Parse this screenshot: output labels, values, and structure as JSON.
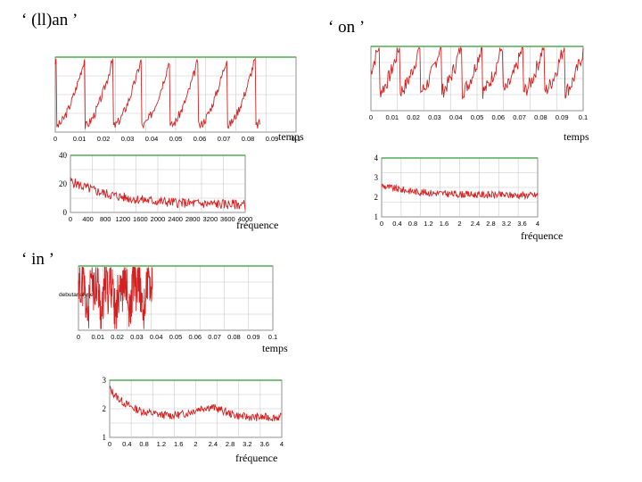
{
  "titles": {
    "llan": "‘ (ll)an ’",
    "on": "‘ on ’",
    "in": "‘ in ’"
  },
  "colors": {
    "signal": "#d42020",
    "grid": "#c8c8c8",
    "frame": "#909090",
    "topline": "#2e9e2e"
  },
  "chart_data": [
    {
      "id": "llan_time",
      "type": "line",
      "xlabel": "temps",
      "ylabel": "",
      "xlim": [
        0,
        0.1
      ],
      "x_ticks": [
        "0",
        "0.01",
        "0.02",
        "0.03",
        "0.04",
        "0.05",
        "0.06",
        "0.07",
        "0.08",
        "0.09",
        "0.1"
      ],
      "y_ticks": [],
      "annotation": "",
      "signal": {
        "kind": "periodic",
        "x_end": 0.085,
        "period": 0.0118,
        "phase": 0.0005,
        "base": 0.08,
        "amp": 0.92,
        "noise": 0.06,
        "seed": 3
      }
    },
    {
      "id": "on_time",
      "type": "line",
      "xlabel": "temps",
      "ylabel": "",
      "xlim": [
        0,
        0.1
      ],
      "x_ticks": [
        "0",
        "0.01",
        "0.02",
        "0.03",
        "0.04",
        "0.05",
        "0.06",
        "0.07",
        "0.08",
        "0.09",
        "0.1"
      ],
      "y_ticks": [],
      "annotation": "",
      "signal": {
        "kind": "periodic",
        "x_end": 0.1,
        "period": 0.0097,
        "phase": 0.004,
        "base": 0.3,
        "amp": 0.75,
        "noise": 0.12,
        "seed": 7
      }
    },
    {
      "id": "in_time",
      "type": "line",
      "xlabel": "temps",
      "ylabel": "",
      "xlim": [
        0,
        0.1
      ],
      "x_ticks": [
        "0",
        "0.01",
        "0.02",
        "0.03",
        "0.04",
        "0.05",
        "0.06",
        "0.07",
        "0.08",
        "0.09",
        "0.1"
      ],
      "y_ticks": [],
      "annotation": "debutanalyse",
      "signal": {
        "kind": "noisy",
        "x_end": 0.038,
        "period": 0.0072,
        "phase": 0.001,
        "base": 0.25,
        "amp": 0.7,
        "noise": 0.35,
        "seed": 11
      }
    },
    {
      "id": "llan_freq",
      "type": "line",
      "xlabel": "fréquence",
      "ylabel": "",
      "xlim": [
        0,
        4000
      ],
      "ylim": [
        0,
        40
      ],
      "x_ticks": [
        "0",
        "400",
        "800",
        "1200",
        "1600",
        "2000",
        "2400",
        "2800",
        "3200",
        "3600",
        "4000"
      ],
      "y_ticks": [
        "0",
        "20",
        "40"
      ],
      "annotation": "",
      "signal": {
        "kind": "decay",
        "start": 22,
        "end": 5,
        "tau": 1100,
        "noise": 3.5,
        "seed": 5
      }
    },
    {
      "id": "on_freq",
      "type": "line",
      "xlabel": "fréquence",
      "ylabel": "",
      "xlim": [
        0,
        4
      ],
      "ylim": [
        1,
        4
      ],
      "x_ticks": [
        "0",
        "0.4",
        "0.8",
        "1.2",
        "1.6",
        "2",
        "2.4",
        "2.8",
        "3.2",
        "3.6",
        "4"
      ],
      "y_ticks": [
        "1",
        "2",
        "3",
        "4"
      ],
      "annotation": "",
      "signal": {
        "kind": "decay",
        "start": 2.6,
        "end": 2.1,
        "tau": 0.9,
        "noise": 0.18,
        "seed": 9
      }
    },
    {
      "id": "in_freq",
      "type": "line",
      "xlabel": "fréquence",
      "ylabel": "",
      "xlim": [
        0,
        4
      ],
      "ylim": [
        1,
        3
      ],
      "x_ticks": [
        "0",
        "0.4",
        "0.8",
        "1.2",
        "1.6",
        "2",
        "2.4",
        "2.8",
        "3.2",
        "3.6",
        "4"
      ],
      "y_ticks": [
        "1",
        "2",
        "3"
      ],
      "annotation": "",
      "signal": {
        "kind": "hump",
        "start": 2.7,
        "end": 1.7,
        "tau": 0.5,
        "noise": 0.14,
        "seed": 13
      }
    }
  ]
}
